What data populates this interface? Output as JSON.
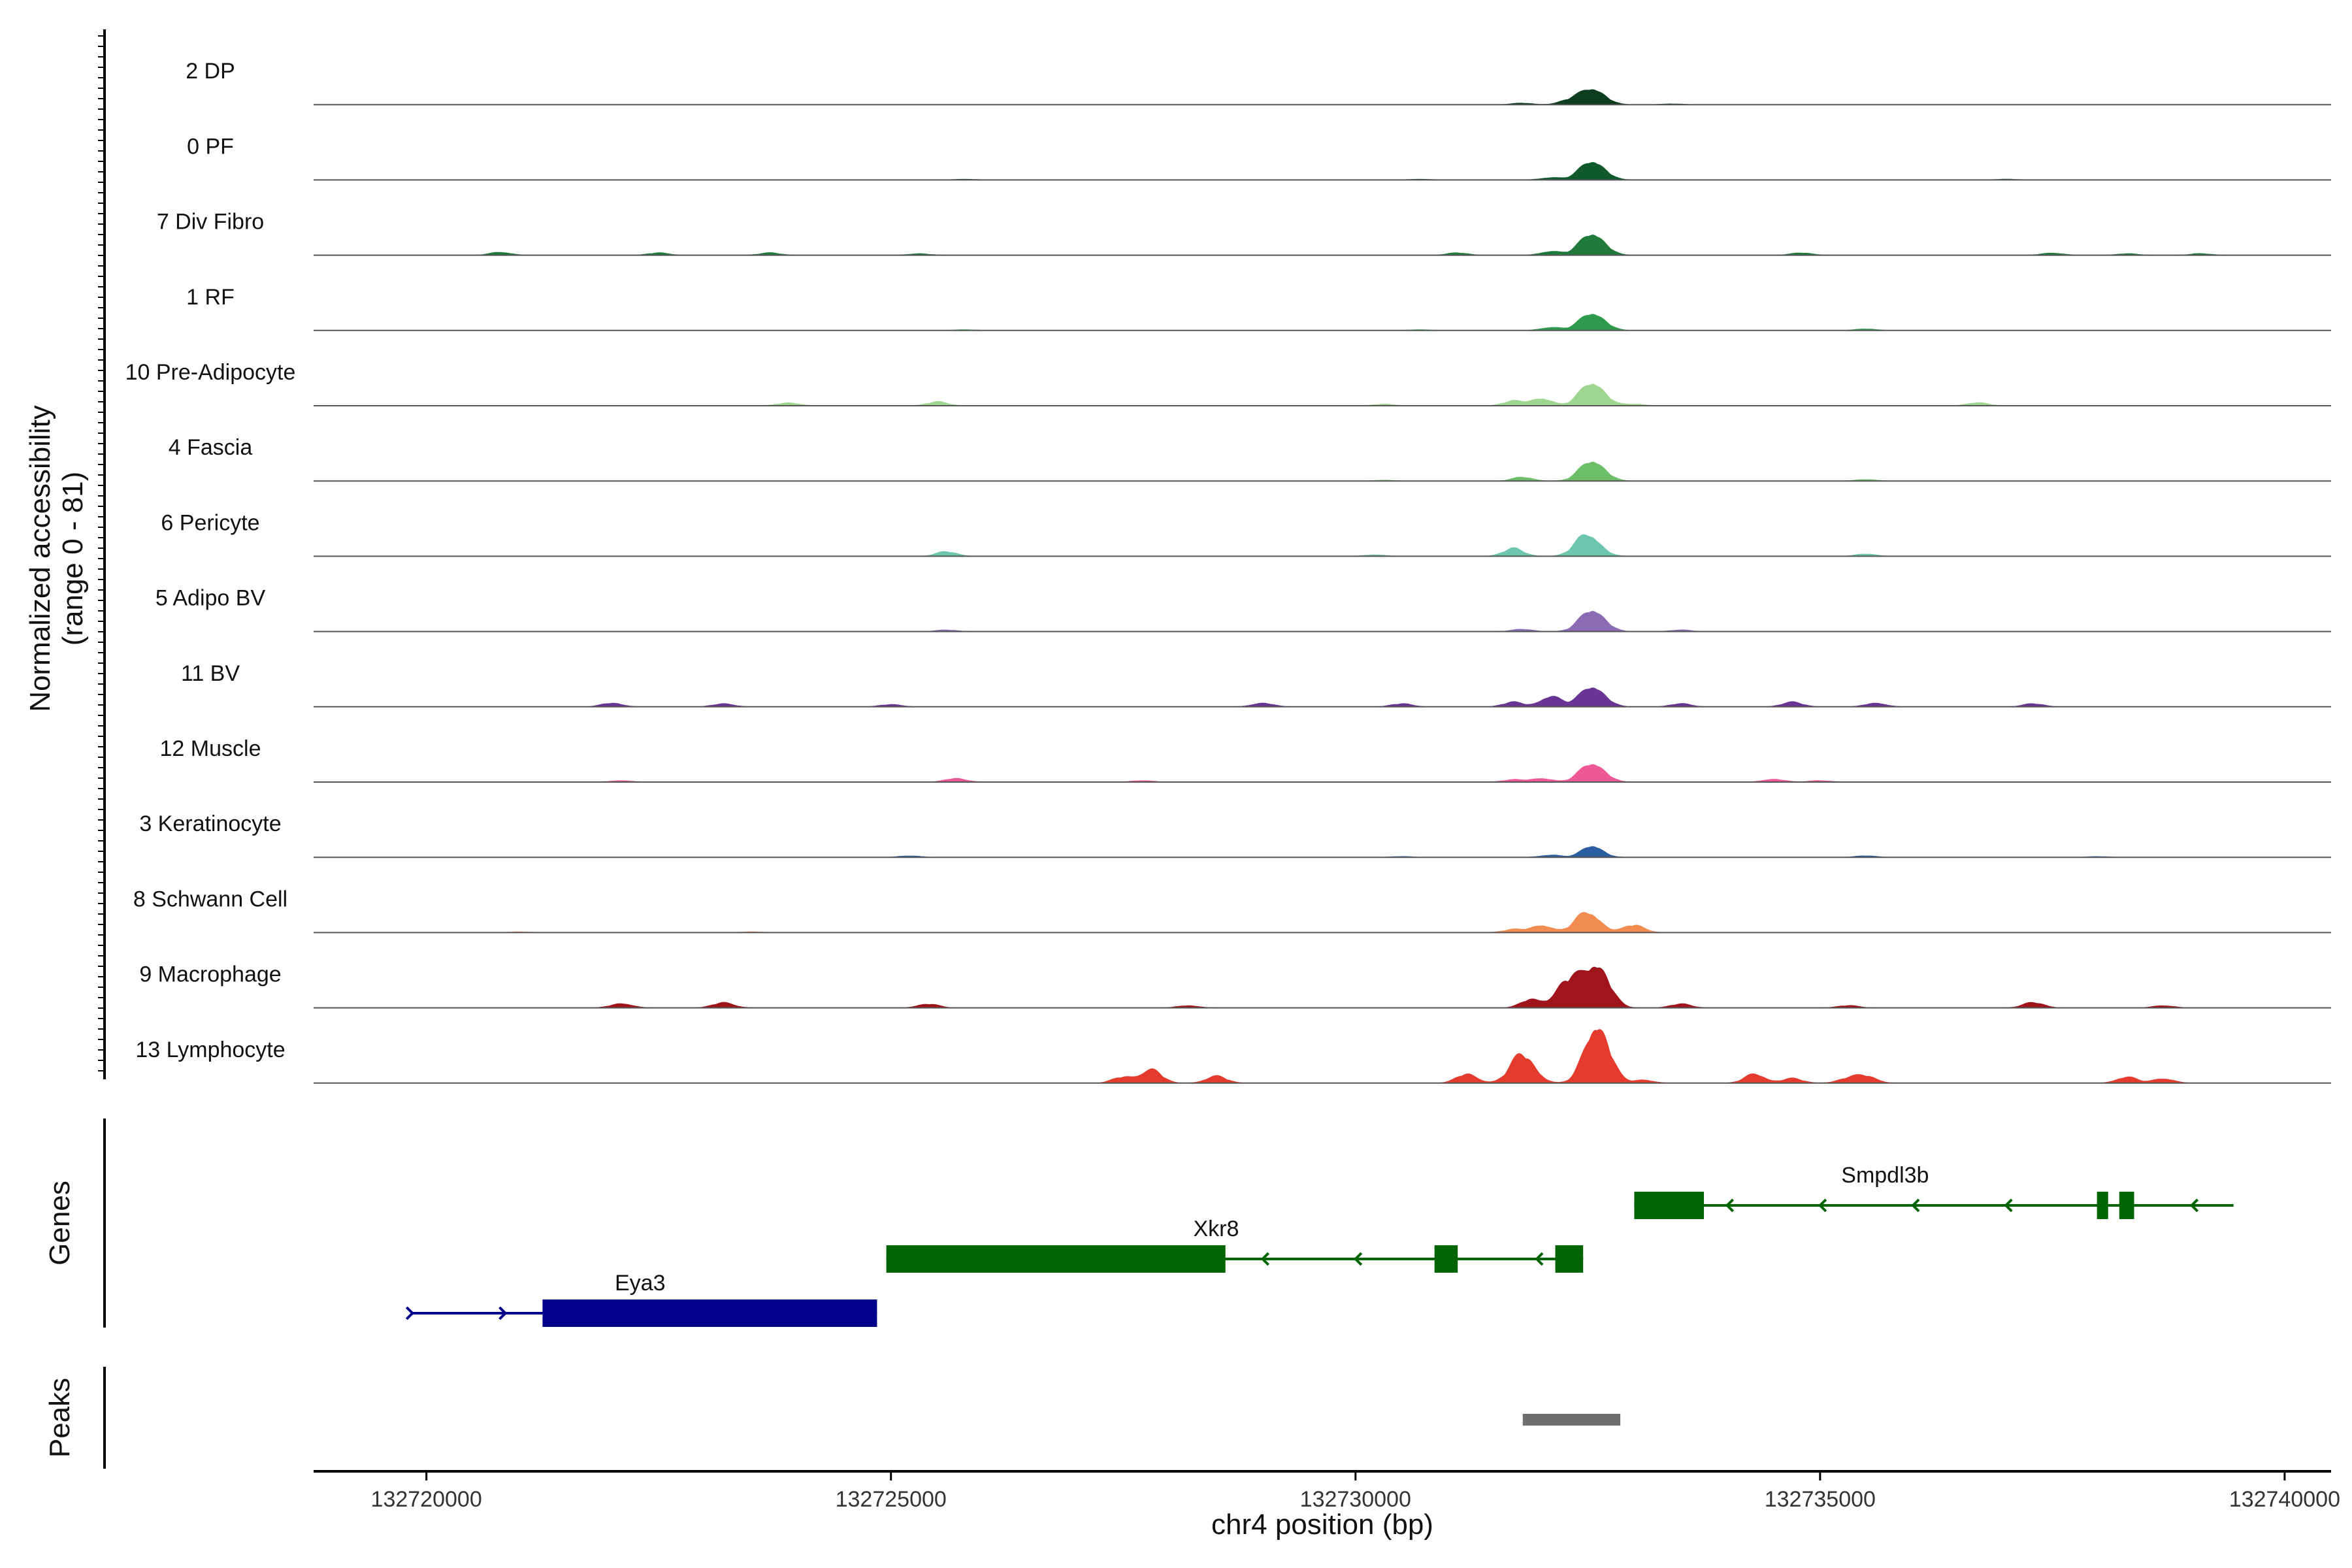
{
  "chart_data": {
    "type": "area",
    "title": "",
    "xlabel": "chr4 position (bp)",
    "ylabel_line1": "Normalized accessibility",
    "ylabel_line2": "(range 0 - 81)",
    "y_range": [
      0,
      81
    ],
    "xlim": [
      132718800,
      132740500
    ],
    "x_ticks": [
      132720000,
      132725000,
      132730000,
      132735000,
      132740000
    ],
    "x_tick_labels": [
      "132720000",
      "132725000",
      "132730000",
      "132735000",
      "132740000"
    ],
    "genes_label": "Genes",
    "peaks_label": "Peaks",
    "tracks": [
      {
        "name": "2 DP",
        "color": "#0b3d1e",
        "peaks": [
          [
            132732550,
            22
          ],
          [
            132732300,
            5
          ],
          [
            132731800,
            2
          ],
          [
            132733400,
            1
          ]
        ]
      },
      {
        "name": "0 PF",
        "color": "#0e5a2a",
        "peaks": [
          [
            132732550,
            26
          ],
          [
            132732100,
            3
          ],
          [
            132730700,
            1
          ],
          [
            132725800,
            1
          ],
          [
            132737000,
            1
          ]
        ]
      },
      {
        "name": "7 Div Fibro",
        "color": "#1f7a3c",
        "peaks": [
          [
            132732550,
            30
          ],
          [
            132732100,
            5
          ],
          [
            132720800,
            4
          ],
          [
            132722500,
            3
          ],
          [
            132723700,
            3
          ],
          [
            132725300,
            2
          ],
          [
            132731100,
            3
          ],
          [
            132734800,
            3
          ],
          [
            132737500,
            3
          ],
          [
            132738300,
            2
          ],
          [
            132739100,
            2
          ]
        ]
      },
      {
        "name": "1 RF",
        "color": "#2e9a4c",
        "peaks": [
          [
            132732550,
            24
          ],
          [
            132732100,
            4
          ],
          [
            132735500,
            2
          ],
          [
            132730700,
            1
          ],
          [
            132725800,
            1
          ]
        ]
      },
      {
        "name": "10 Pre-Adipocyte",
        "color": "#9fd68f",
        "peaks": [
          [
            132732550,
            32
          ],
          [
            132732000,
            10
          ],
          [
            132731700,
            6
          ],
          [
            132723900,
            4
          ],
          [
            132725500,
            5
          ],
          [
            132736700,
            4
          ],
          [
            132730300,
            2
          ],
          [
            132733000,
            2
          ]
        ]
      },
      {
        "name": "4 Fascia",
        "color": "#6cbf68",
        "peaks": [
          [
            132732550,
            28
          ],
          [
            132731800,
            5
          ],
          [
            132735500,
            2
          ],
          [
            132730300,
            1
          ]
        ]
      },
      {
        "name": "6 Pericyte",
        "color": "#6dc6ae",
        "peaks": [
          [
            132732500,
            30
          ],
          [
            132731700,
            10
          ],
          [
            132725600,
            6
          ],
          [
            132735500,
            3
          ],
          [
            132730200,
            2
          ]
        ]
      },
      {
        "name": "5 Adipo BV",
        "color": "#8b6bb3",
        "peaks": [
          [
            132732550,
            30
          ],
          [
            132731800,
            3
          ],
          [
            132725600,
            2
          ],
          [
            132733500,
            2
          ]
        ]
      },
      {
        "name": "11 BV",
        "color": "#6a3494",
        "peaks": [
          [
            132732550,
            28
          ],
          [
            132732100,
            14
          ],
          [
            132731700,
            6
          ],
          [
            132722000,
            5
          ],
          [
            132723200,
            4
          ],
          [
            132725000,
            3
          ],
          [
            132729000,
            5
          ],
          [
            132730500,
            4
          ],
          [
            132733500,
            4
          ],
          [
            132734700,
            6
          ],
          [
            132735600,
            5
          ],
          [
            132737300,
            4
          ]
        ]
      },
      {
        "name": "12 Muscle",
        "color": "#ee5a97",
        "peaks": [
          [
            132732550,
            26
          ],
          [
            132732000,
            5
          ],
          [
            132725700,
            5
          ],
          [
            132734500,
            4
          ],
          [
            132722100,
            2
          ],
          [
            132727700,
            2
          ],
          [
            132731700,
            3
          ],
          [
            132735000,
            2
          ]
        ]
      },
      {
        "name": "3 Keratinocyte",
        "color": "#2a5ea0",
        "peaks": [
          [
            132732550,
            16
          ],
          [
            132732100,
            3
          ],
          [
            132725200,
            2
          ],
          [
            132735500,
            2
          ],
          [
            132730500,
            1
          ],
          [
            132738000,
            1
          ]
        ]
      },
      {
        "name": "8 Schwann Cell",
        "color": "#f38c50",
        "peaks": [
          [
            132732500,
            28
          ],
          [
            132732000,
            10
          ],
          [
            132733000,
            10
          ],
          [
            132731700,
            4
          ],
          [
            132723500,
            1
          ],
          [
            132721000,
            1
          ]
        ]
      },
      {
        "name": "9 Macrophage",
        "color": "#a0141c",
        "peaks": [
          [
            132732600,
            58
          ],
          [
            132732300,
            36
          ],
          [
            132731900,
            12
          ],
          [
            132722100,
            6
          ],
          [
            132723200,
            7
          ],
          [
            132725400,
            5
          ],
          [
            132728200,
            3
          ],
          [
            132733500,
            5
          ],
          [
            132735300,
            3
          ],
          [
            132737300,
            7
          ],
          [
            132738700,
            3
          ]
        ]
      },
      {
        "name": "13 Lymphocyte",
        "color": "#e53a2e",
        "peaks": [
          [
            132732600,
            80
          ],
          [
            132731800,
            38
          ],
          [
            132731200,
            12
          ],
          [
            132727800,
            18
          ],
          [
            132727500,
            8
          ],
          [
            132728500,
            9
          ],
          [
            132733100,
            4
          ],
          [
            132734300,
            12
          ],
          [
            132734700,
            6
          ],
          [
            132735500,
            9
          ],
          [
            132735300,
            6
          ],
          [
            132738300,
            8
          ],
          [
            132738700,
            6
          ]
        ]
      }
    ],
    "genes": [
      {
        "name": "Eya3",
        "strand": "+",
        "color": "#00008b",
        "row": 2,
        "start": 132719850,
        "end": 132724850,
        "exons": [
          [
            132721250,
            132724850
          ]
        ],
        "arrows": [
          132719850,
          132720850
        ]
      },
      {
        "name": "Xkr8",
        "strand": "-",
        "color": "#006400",
        "row": 1,
        "start": 132724950,
        "end": 132732450,
        "exons": [
          [
            132724950,
            132728600
          ],
          [
            132730850,
            132731100
          ],
          [
            132732150,
            132732450
          ]
        ],
        "arrows": [
          132729000,
          132730000,
          132731950
        ]
      },
      {
        "name": "Smpdl3b",
        "strand": "-",
        "color": "#006400",
        "row": 0,
        "start": 132733000,
        "end": 132739450,
        "exons": [
          [
            132733000,
            132733750
          ],
          [
            132737980,
            132738100
          ],
          [
            132738220,
            132738380
          ]
        ],
        "arrows": [
          132734000,
          132735000,
          132736000,
          132737000,
          132739000
        ]
      }
    ],
    "peaks": [
      [
        132731800,
        132732850
      ]
    ],
    "peak_color": "#6e6e6e"
  }
}
